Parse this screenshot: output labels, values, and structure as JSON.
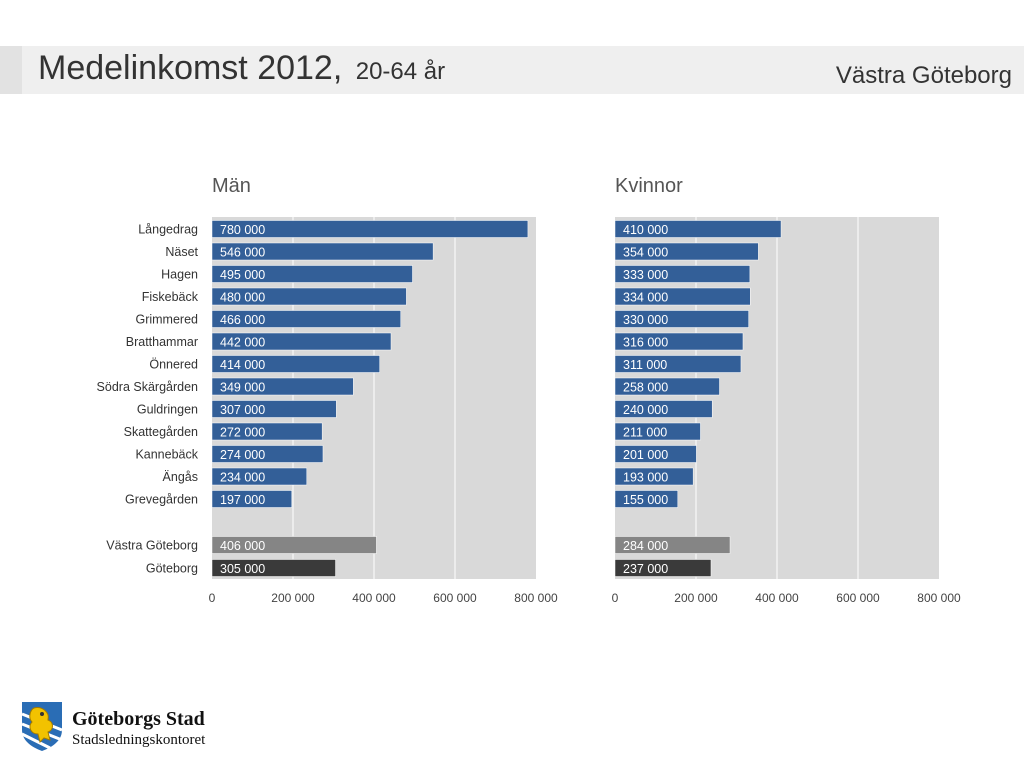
{
  "header": {
    "title": "Medelinkomst 2012,",
    "subtitle": "20-64 år",
    "area": "Västra Göteborg"
  },
  "logo": {
    "name": "Göteborgs Stad",
    "department": "Stadsledningskontoret"
  },
  "colors": {
    "district_bar": "#335f98",
    "area_bar": "#858585",
    "city_bar": "#3a3a3a",
    "plot_bg": "#d9d9d9",
    "gridline": "#ffffff"
  },
  "chart_data": [
    {
      "type": "bar",
      "orientation": "horizontal",
      "title": "Män",
      "categories": [
        "Långedrag",
        "Näset",
        "Hagen",
        "Fiskebäck",
        "Grimmered",
        "Bratthammar",
        "Önnered",
        "Södra Skärgården",
        "Guldringen",
        "Skattegården",
        "Kannebäck",
        "Ängås",
        "Grevegården",
        "Västra Göteborg",
        "Göteborg"
      ],
      "values": [
        780000,
        546000,
        495000,
        480000,
        466000,
        442000,
        414000,
        349000,
        307000,
        272000,
        274000,
        234000,
        197000,
        406000,
        305000
      ],
      "data_labels": [
        "780 000",
        "546 000",
        "495 000",
        "480 000",
        "466 000",
        "442 000",
        "414 000",
        "349 000",
        "307 000",
        "272 000",
        "274 000",
        "234 000",
        "197 000",
        "406 000",
        "305 000"
      ],
      "xlim": [
        0,
        800000
      ],
      "xticks": [
        0,
        200000,
        400000,
        600000,
        800000
      ],
      "xtick_labels": [
        "0",
        "200 000",
        "400 000",
        "600 000",
        "800 000"
      ],
      "grid": true
    },
    {
      "type": "bar",
      "orientation": "horizontal",
      "title": "Kvinnor",
      "categories": [
        "Långedrag",
        "Näset",
        "Hagen",
        "Fiskebäck",
        "Grimmered",
        "Bratthammar",
        "Önnered",
        "Södra Skärgården",
        "Guldringen",
        "Skattegården",
        "Kannebäck",
        "Ängås",
        "Grevegården",
        "Västra Göteborg",
        "Göteborg"
      ],
      "values": [
        410000,
        354000,
        333000,
        334000,
        330000,
        316000,
        311000,
        258000,
        240000,
        211000,
        201000,
        193000,
        155000,
        284000,
        237000
      ],
      "data_labels": [
        "410 000",
        "354 000",
        "333 000",
        "334 000",
        "330 000",
        "316 000",
        "311 000",
        "258 000",
        "240 000",
        "211 000",
        "201 000",
        "193 000",
        "155 000",
        "284 000",
        "237 000"
      ],
      "xlim": [
        0,
        800000
      ],
      "xticks": [
        0,
        200000,
        400000,
        600000,
        800000
      ],
      "xtick_labels": [
        "0",
        "200 000",
        "400 000",
        "600 000",
        "800 000"
      ],
      "grid": true
    }
  ]
}
